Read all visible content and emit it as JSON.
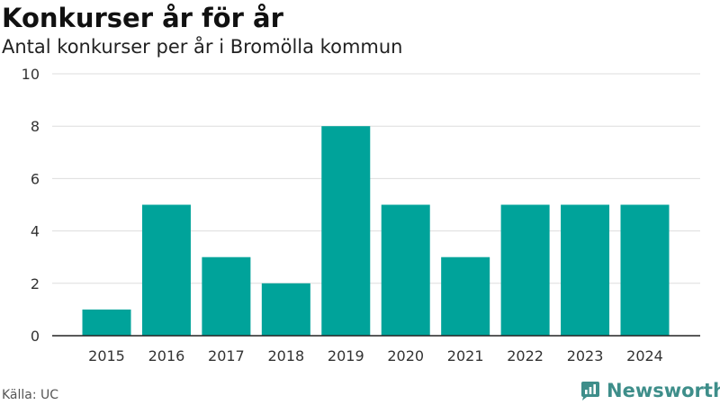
{
  "header": {
    "title": "Konkurser år för år",
    "subtitle": "Antal konkurser per år i Bromölla kommun"
  },
  "footer": {
    "source": "Källa: UC",
    "brand": "Newsworthy"
  },
  "colors": {
    "bar": "#00a39a",
    "grid": "#dddddd",
    "axis": "#222222",
    "brand": "#3e8e8a"
  },
  "chart_data": {
    "type": "bar",
    "title": "Konkurser år för år",
    "subtitle": "Antal konkurser per år i Bromölla kommun",
    "categories": [
      "2015",
      "2016",
      "2017",
      "2018",
      "2019",
      "2020",
      "2021",
      "2022",
      "2023",
      "2024"
    ],
    "values": [
      1,
      5,
      3,
      2,
      8,
      5,
      3,
      5,
      5,
      5
    ],
    "ylim": [
      0,
      10
    ],
    "yticks": [
      0,
      2,
      4,
      6,
      8,
      10
    ],
    "xlabel": "",
    "ylabel": "",
    "grid": true,
    "legend": "none"
  }
}
